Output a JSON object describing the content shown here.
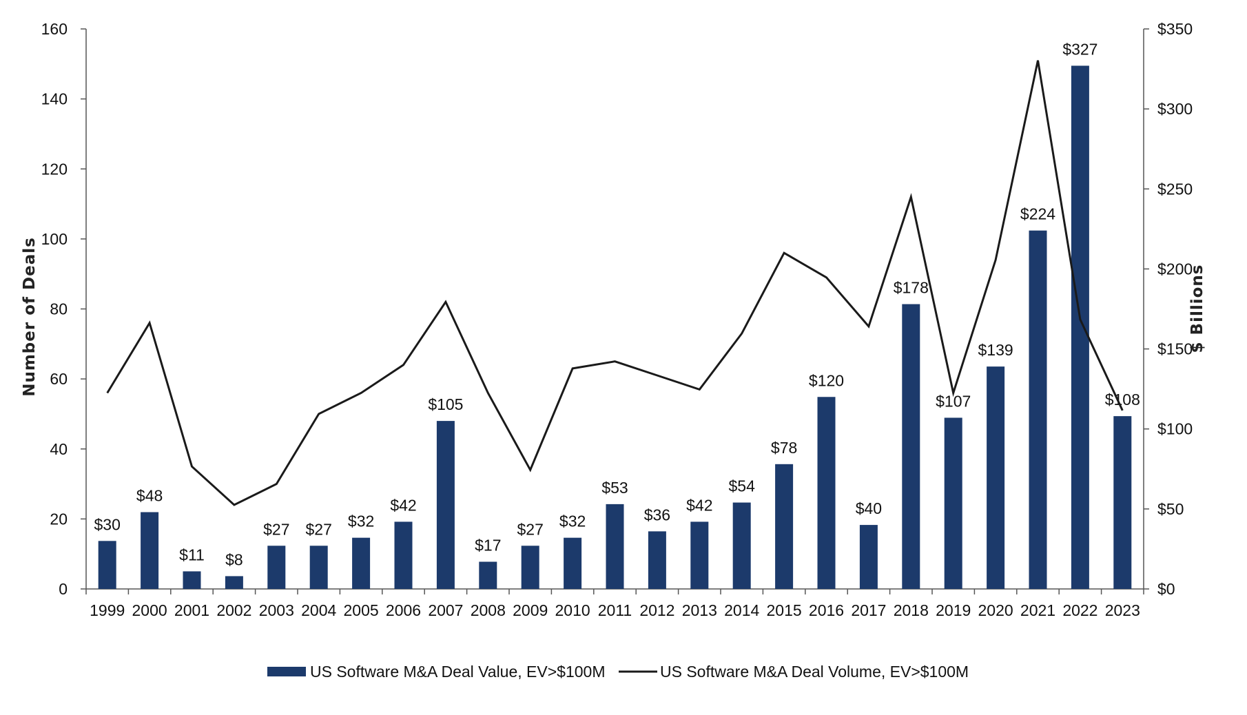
{
  "chart_data": {
    "type": "bar",
    "combo": "bar + line (dual axis)",
    "categories": [
      "1999",
      "2000",
      "2001",
      "2002",
      "2003",
      "2004",
      "2005",
      "2006",
      "2007",
      "2008",
      "2009",
      "2010",
      "2011",
      "2012",
      "2013",
      "2014",
      "2015",
      "2016",
      "2017",
      "2018",
      "2019",
      "2020",
      "2021",
      "2022",
      "2023"
    ],
    "series": [
      {
        "name": "US Software M&A Deal Value, EV>$100M",
        "type": "bar",
        "axis": "right",
        "color": "#1c3a6b",
        "values": [
          30,
          48,
          11,
          8,
          27,
          27,
          32,
          42,
          105,
          17,
          27,
          32,
          53,
          36,
          42,
          54,
          78,
          120,
          40,
          178,
          107,
          139,
          224,
          327,
          108
        ],
        "labels": [
          "$30",
          "$48",
          "$11",
          "$8",
          "$27",
          "$27",
          "$32",
          "$42",
          "$105",
          "$17",
          "$27",
          "$32",
          "$53",
          "$36",
          "$42",
          "$54",
          "$78",
          "$120",
          "$40",
          "$178",
          "$107",
          "$139",
          "$224",
          "$327",
          "$108"
        ]
      },
      {
        "name": "US Software M&A Deal Volume, EV>$100M",
        "type": "line",
        "axis": "left",
        "color": "#1a1a1a",
        "values": [
          56,
          76,
          35,
          24,
          30,
          50,
          56,
          64,
          82,
          56,
          34,
          63,
          65,
          61,
          57,
          73,
          96,
          89,
          75,
          112,
          56,
          94,
          151,
          77,
          51
        ]
      }
    ],
    "left_axis": {
      "title": "Number of Deals",
      "range": [
        0,
        160
      ],
      "ticks": [
        "0",
        "20",
        "40",
        "60",
        "80",
        "100",
        "120",
        "140",
        "160"
      ]
    },
    "right_axis": {
      "title": "$ Billions",
      "range": [
        0,
        350
      ],
      "ticks": [
        "$0",
        "$50",
        "$100",
        "$150",
        "$200",
        "$250",
        "$300",
        "$350"
      ]
    },
    "grid": false,
    "legend_position": "bottom"
  }
}
